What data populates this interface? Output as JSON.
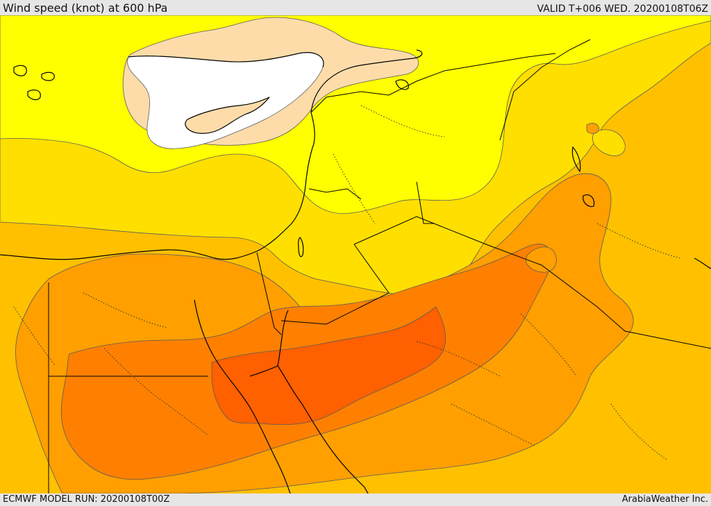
{
  "header": {
    "title": "Wind speed (knot) at 600 hPa",
    "valid": "VALID T+006 WED. 20200108T06Z"
  },
  "footer": {
    "model_run": "ECMWF MODEL RUN: 20200108T00Z",
    "credit": "ArabiaWeather Inc."
  },
  "colors": {
    "below_lowest_band": "#ffffff",
    "band_1": "#fddcaa",
    "band_2": "#ffff00",
    "band_3": "#ffdf00",
    "band_4": "#ffc000",
    "band_5": "#ff9f00",
    "band_6": "#ff8000",
    "band_7": "#ff6000",
    "coastline": "#000000",
    "border": "#000000",
    "background": "#e6e6e6"
  }
}
